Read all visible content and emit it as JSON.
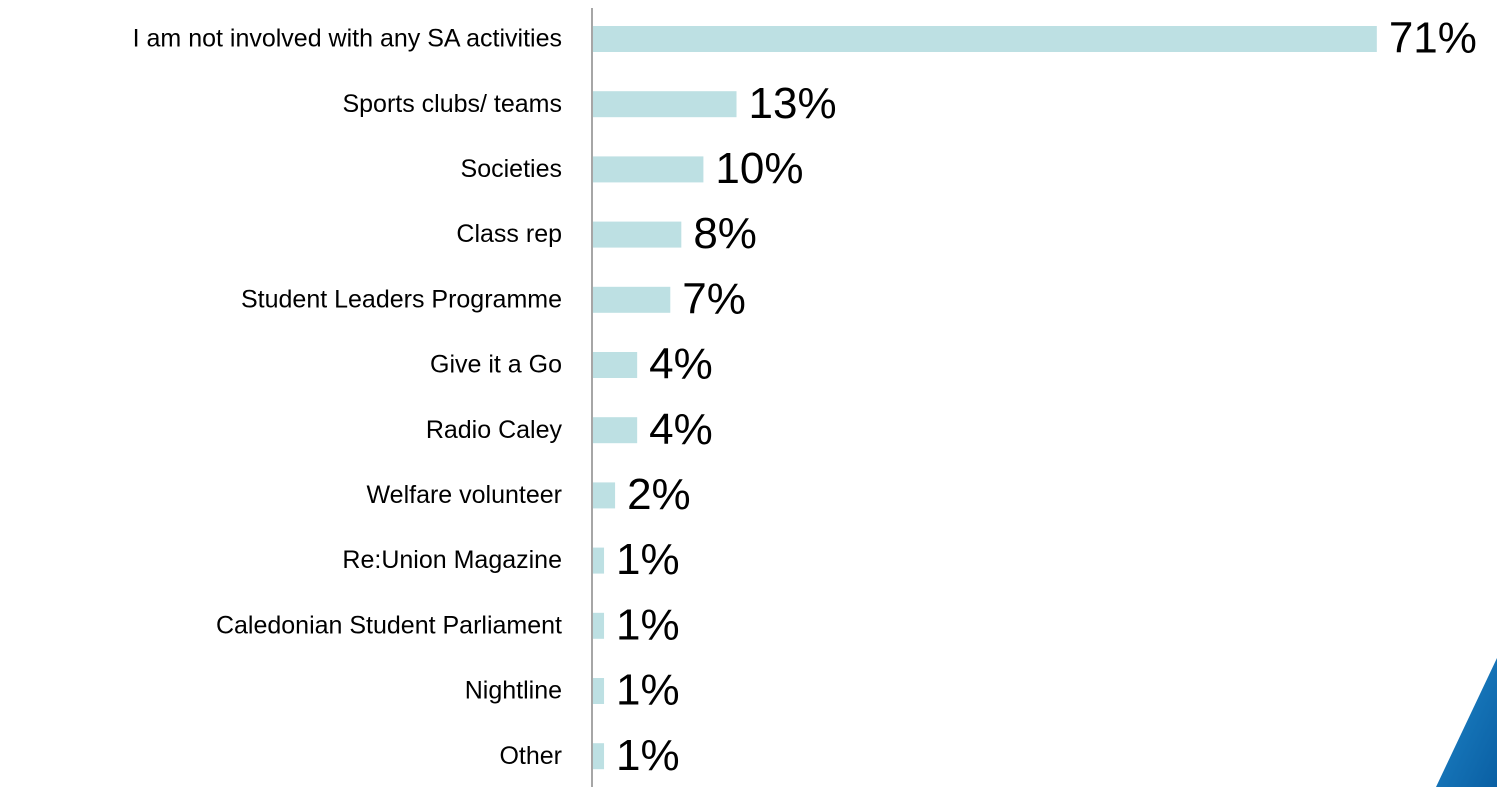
{
  "chart_data": {
    "type": "bar",
    "orientation": "horizontal",
    "categories": [
      "I am not involved with any SA activities",
      "Sports clubs/ teams",
      "Societies",
      "Class rep",
      "Student Leaders Programme",
      "Give it a Go",
      "Radio Caley",
      "Welfare volunteer",
      "Re:Union Magazine",
      "Caledonian Student Parliament",
      "Nightline",
      "Other"
    ],
    "values": [
      71,
      13,
      10,
      8,
      7,
      4,
      4,
      2,
      1,
      1,
      1,
      1
    ],
    "value_labels": [
      "71%",
      "13%",
      "10%",
      "8%",
      "7%",
      "4%",
      "4%",
      "2%",
      "1%",
      "1%",
      "1%",
      "1%"
    ],
    "color": "#bde0e3"
  }
}
